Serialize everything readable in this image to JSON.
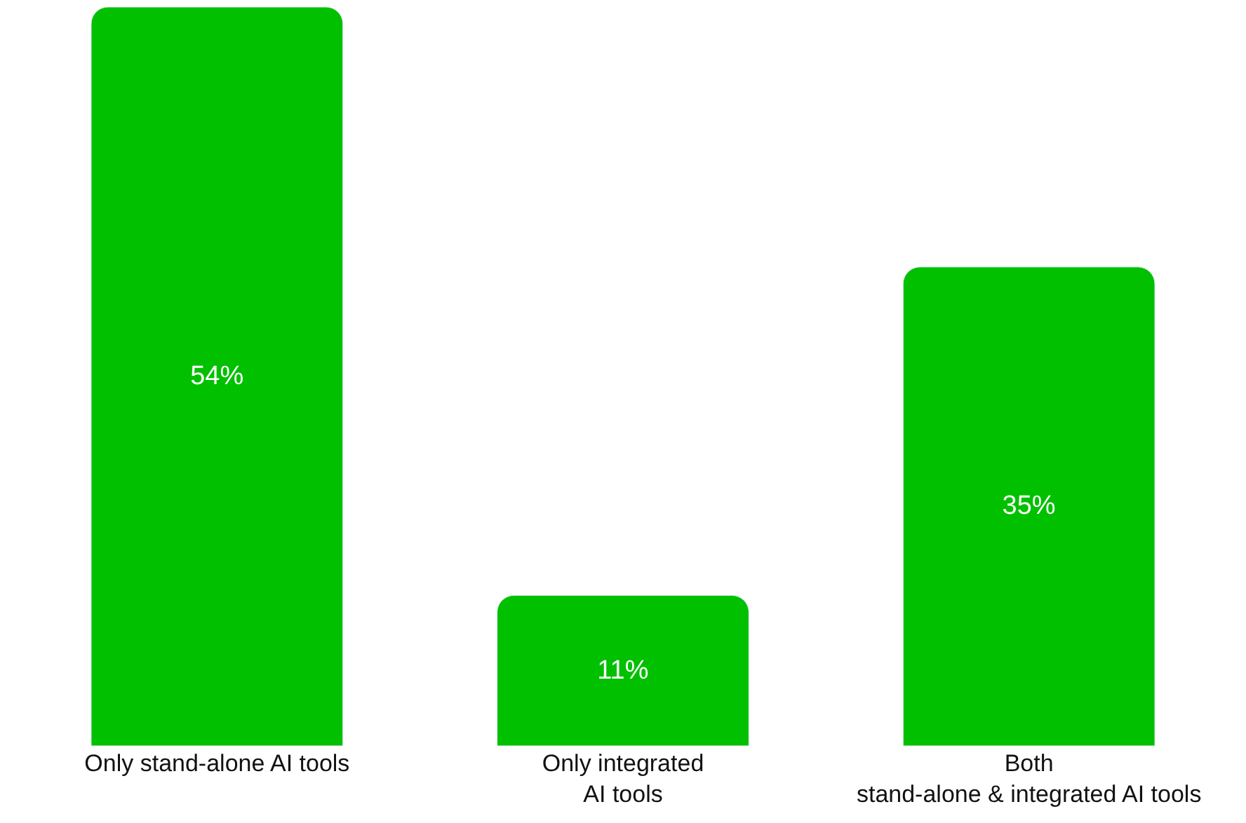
{
  "chart_data": {
    "type": "bar",
    "categories": [
      "Only stand-alone AI tools",
      "Only integrated\nAI tools",
      "Both\nstand-alone & integrated AI tools"
    ],
    "values": [
      54,
      11,
      35
    ],
    "value_labels": [
      "54%",
      "11%",
      "35%"
    ],
    "color": "#00c000",
    "legend": false
  }
}
